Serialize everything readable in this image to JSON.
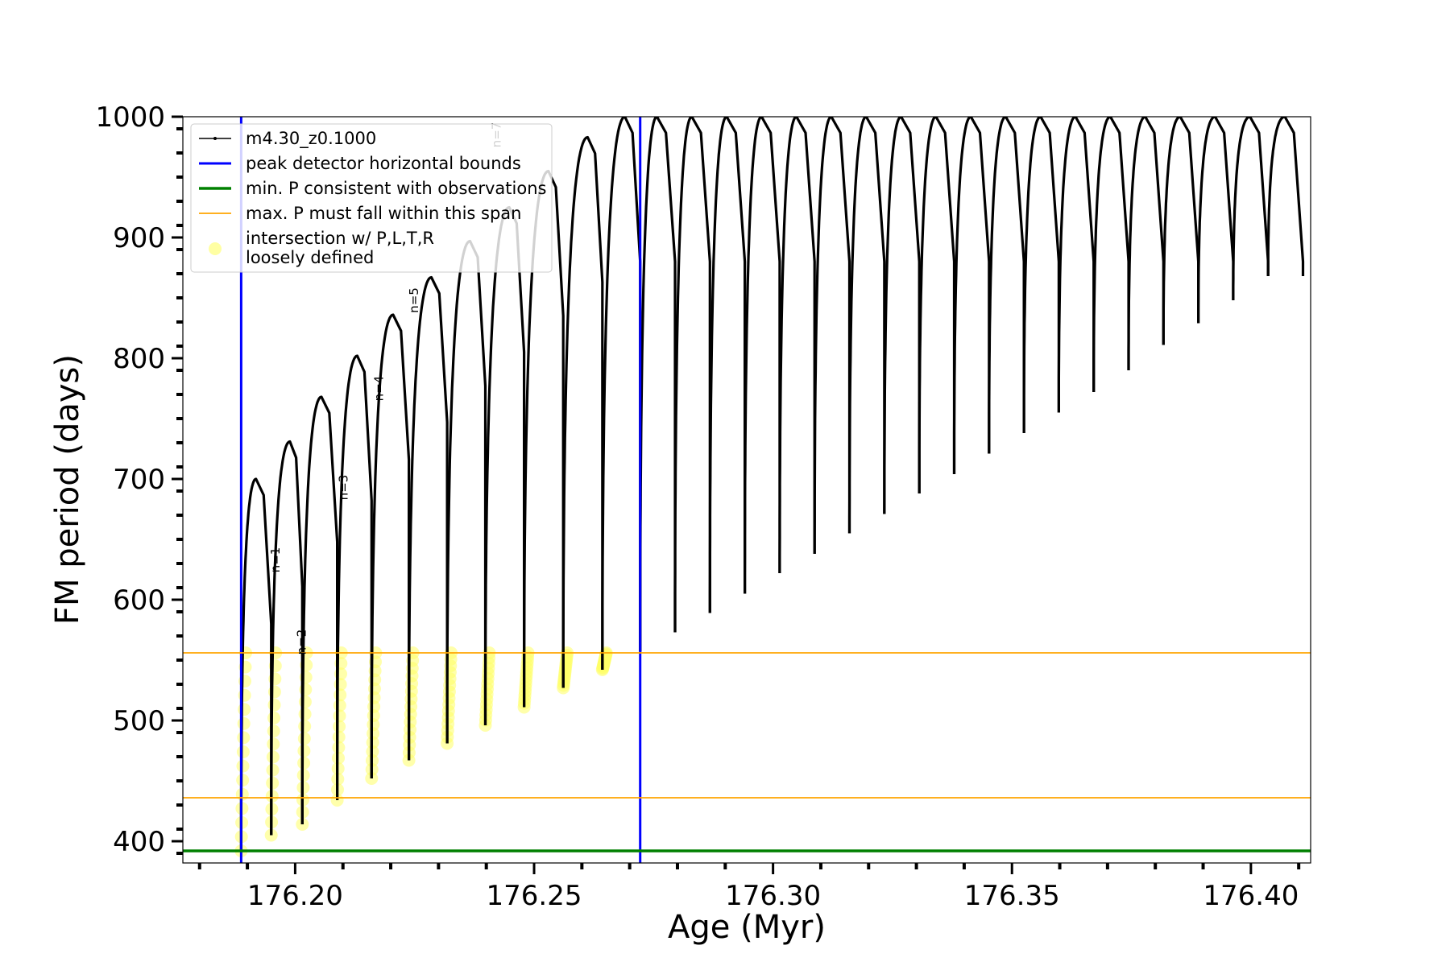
{
  "chart_data": {
    "type": "line",
    "title": "",
    "xlabel": "Age (Myr)",
    "ylabel": "FM period (days)",
    "xlim": [
      176.1765,
      176.4125
    ],
    "ylim": [
      382,
      1000
    ],
    "xticks": [
      176.2,
      176.25,
      176.3,
      176.35,
      176.4
    ],
    "xtick_labels": [
      "176.20",
      "176.25",
      "176.30",
      "176.35",
      "176.40"
    ],
    "yticks": [
      400,
      500,
      600,
      700,
      800,
      900,
      1000
    ],
    "ytick_labels": [
      "400",
      "500",
      "600",
      "700",
      "800",
      "900",
      "1000"
    ],
    "grid": false,
    "legend_placement": "top-left",
    "colors": {
      "track": "#000000",
      "blue_bounds": "#0000ff",
      "green_min": "#008000",
      "orange_span": "#ffa500",
      "yellow_points": "#ffff66"
    },
    "series": [
      {
        "name": "m4.30_z0.1000",
        "kind": "pulse-cycles",
        "color": "#000000",
        "cycles": [
          {
            "start": 176.1887,
            "peak_x": 176.1918,
            "peak": 700,
            "end": 176.195,
            "drop": 392
          },
          {
            "start": 176.195,
            "peak_x": 176.1989,
            "peak": 731,
            "end": 176.2015,
            "drop": 405
          },
          {
            "start": 176.2015,
            "peak_x": 176.2055,
            "peak": 768,
            "end": 176.2088,
            "drop": 414
          },
          {
            "start": 176.2088,
            "peak_x": 176.213,
            "peak": 802,
            "end": 176.216,
            "drop": 434
          },
          {
            "start": 176.216,
            "peak_x": 176.2205,
            "peak": 836,
            "end": 176.2238,
            "drop": 452
          },
          {
            "start": 176.2238,
            "peak_x": 176.2285,
            "peak": 867,
            "end": 176.2318,
            "drop": 467
          },
          {
            "start": 176.2318,
            "peak_x": 176.2366,
            "peak": 897,
            "end": 176.2398,
            "drop": 481
          },
          {
            "start": 176.2398,
            "peak_x": 176.2448,
            "peak": 925,
            "end": 176.2479,
            "drop": 496
          },
          {
            "start": 176.2479,
            "peak_x": 176.253,
            "peak": 955,
            "end": 176.2561,
            "drop": 511
          },
          {
            "start": 176.2561,
            "peak_x": 176.2612,
            "peak": 983,
            "end": 176.2643,
            "drop": 527
          },
          {
            "start": 176.2643,
            "peak_x": 176.269,
            "peak": 1000,
            "end": 176.2722,
            "drop": 542
          },
          {
            "start": 176.2722,
            "peak_x": 176.2757,
            "peak": 1000,
            "end": 176.2795,
            "drop": 557
          },
          {
            "start": 176.2795,
            "peak_x": 176.283,
            "peak": 1000,
            "end": 176.2868,
            "drop": 573
          },
          {
            "start": 176.2868,
            "peak_x": 176.2903,
            "peak": 1000,
            "end": 176.2941,
            "drop": 589
          },
          {
            "start": 176.2941,
            "peak_x": 176.2976,
            "peak": 1000,
            "end": 176.3014,
            "drop": 605
          },
          {
            "start": 176.3014,
            "peak_x": 176.3049,
            "peak": 1000,
            "end": 176.3087,
            "drop": 622
          },
          {
            "start": 176.3087,
            "peak_x": 176.3122,
            "peak": 1000,
            "end": 176.316,
            "drop": 638
          },
          {
            "start": 176.316,
            "peak_x": 176.3195,
            "peak": 1000,
            "end": 176.3233,
            "drop": 655
          },
          {
            "start": 176.3233,
            "peak_x": 176.3268,
            "peak": 1000,
            "end": 176.3306,
            "drop": 671
          },
          {
            "start": 176.3306,
            "peak_x": 176.3341,
            "peak": 1000,
            "end": 176.3379,
            "drop": 688
          },
          {
            "start": 176.3379,
            "peak_x": 176.3414,
            "peak": 1000,
            "end": 176.3452,
            "drop": 704
          },
          {
            "start": 176.3452,
            "peak_x": 176.3487,
            "peak": 1000,
            "end": 176.3525,
            "drop": 721
          },
          {
            "start": 176.3525,
            "peak_x": 176.356,
            "peak": 1000,
            "end": 176.3598,
            "drop": 738
          },
          {
            "start": 176.3598,
            "peak_x": 176.3633,
            "peak": 1000,
            "end": 176.3671,
            "drop": 755
          },
          {
            "start": 176.3671,
            "peak_x": 176.3706,
            "peak": 1000,
            "end": 176.3744,
            "drop": 772
          },
          {
            "start": 176.3744,
            "peak_x": 176.3779,
            "peak": 1000,
            "end": 176.3817,
            "drop": 790
          },
          {
            "start": 176.3817,
            "peak_x": 176.3852,
            "peak": 1000,
            "end": 176.389,
            "drop": 811
          },
          {
            "start": 176.389,
            "peak_x": 176.3925,
            "peak": 1000,
            "end": 176.3963,
            "drop": 829
          },
          {
            "start": 176.3963,
            "peak_x": 176.3998,
            "peak": 1000,
            "end": 176.4036,
            "drop": 848
          },
          {
            "start": 176.4036,
            "peak_x": 176.4071,
            "peak": 1000,
            "end": 176.4109,
            "drop": 868
          }
        ],
        "final_drop": 868
      },
      {
        "name": "peak detector horizontal bounds",
        "kind": "vlines",
        "color": "#0000ff",
        "x": [
          176.1887,
          176.2722
        ]
      },
      {
        "name": "min. P consistent with observations",
        "kind": "hline",
        "color": "#008000",
        "y": 392
      },
      {
        "name": "max. P must fall within this span",
        "kind": "hlines",
        "color": "#ffa500",
        "y": [
          436,
          556
        ]
      },
      {
        "name": "intersection w/ P,L,T,R\nloosely defined",
        "kind": "markers",
        "color": "#ffff66",
        "region": [
          392,
          556
        ]
      }
    ],
    "legend_entries": [
      {
        "label": "m4.30_z0.1000",
        "style": "black-line-marker"
      },
      {
        "label": "peak detector horizontal bounds",
        "style": "blue-line"
      },
      {
        "label": "min. P consistent with observations",
        "style": "green-line"
      },
      {
        "label": "max. P must fall within this span",
        "style": "orange-line"
      },
      {
        "label": [
          "intersection w/ P,L,T,R",
          "loosely defined"
        ],
        "style": "yellow-dot"
      }
    ],
    "annotations": [
      {
        "text": "n=1",
        "x": 176.1967,
        "y": 633
      },
      {
        "text": "n=2",
        "x": 176.2022,
        "y": 565
      },
      {
        "text": "n=3",
        "x": 176.211,
        "y": 693
      },
      {
        "text": "n=4",
        "x": 176.2184,
        "y": 775
      },
      {
        "text": "n=5",
        "x": 176.2257,
        "y": 848
      },
      {
        "text": "n=7",
        "x": 176.243,
        "y": 985
      }
    ]
  }
}
